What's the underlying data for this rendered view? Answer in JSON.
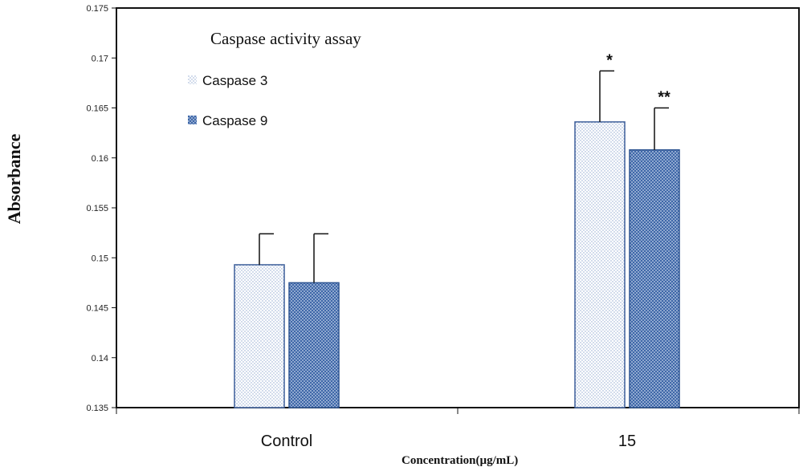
{
  "chart_data": {
    "type": "bar",
    "title": "Caspase activity assay",
    "xlabel": "Concentration(µg/mL)",
    "ylabel": "Absorbance",
    "categories": [
      "Control",
      "15"
    ],
    "ylim": [
      0.135,
      0.175
    ],
    "yticks": [
      "0.135",
      "0.14",
      "0.145",
      "0.15",
      "0.155",
      "0.16",
      "0.165",
      "0.17",
      "0.175"
    ],
    "series": [
      {
        "name": "Caspase 3",
        "values": [
          0.1493,
          0.1636
        ],
        "errors": [
          0.0031,
          0.0051
        ],
        "pattern": "light-dots",
        "color": "#9bb3d6"
      },
      {
        "name": "Caspase 9",
        "values": [
          0.1475,
          0.1608
        ],
        "errors": [
          0.0049,
          0.0042
        ],
        "pattern": "dense-dots",
        "color": "#4a72b0"
      }
    ],
    "annotations": [
      {
        "category": "15",
        "series": "Caspase 3",
        "text": "*"
      },
      {
        "category": "15",
        "series": "Caspase 9",
        "text": "**"
      }
    ],
    "legend_position": "top-left",
    "grid": false
  }
}
